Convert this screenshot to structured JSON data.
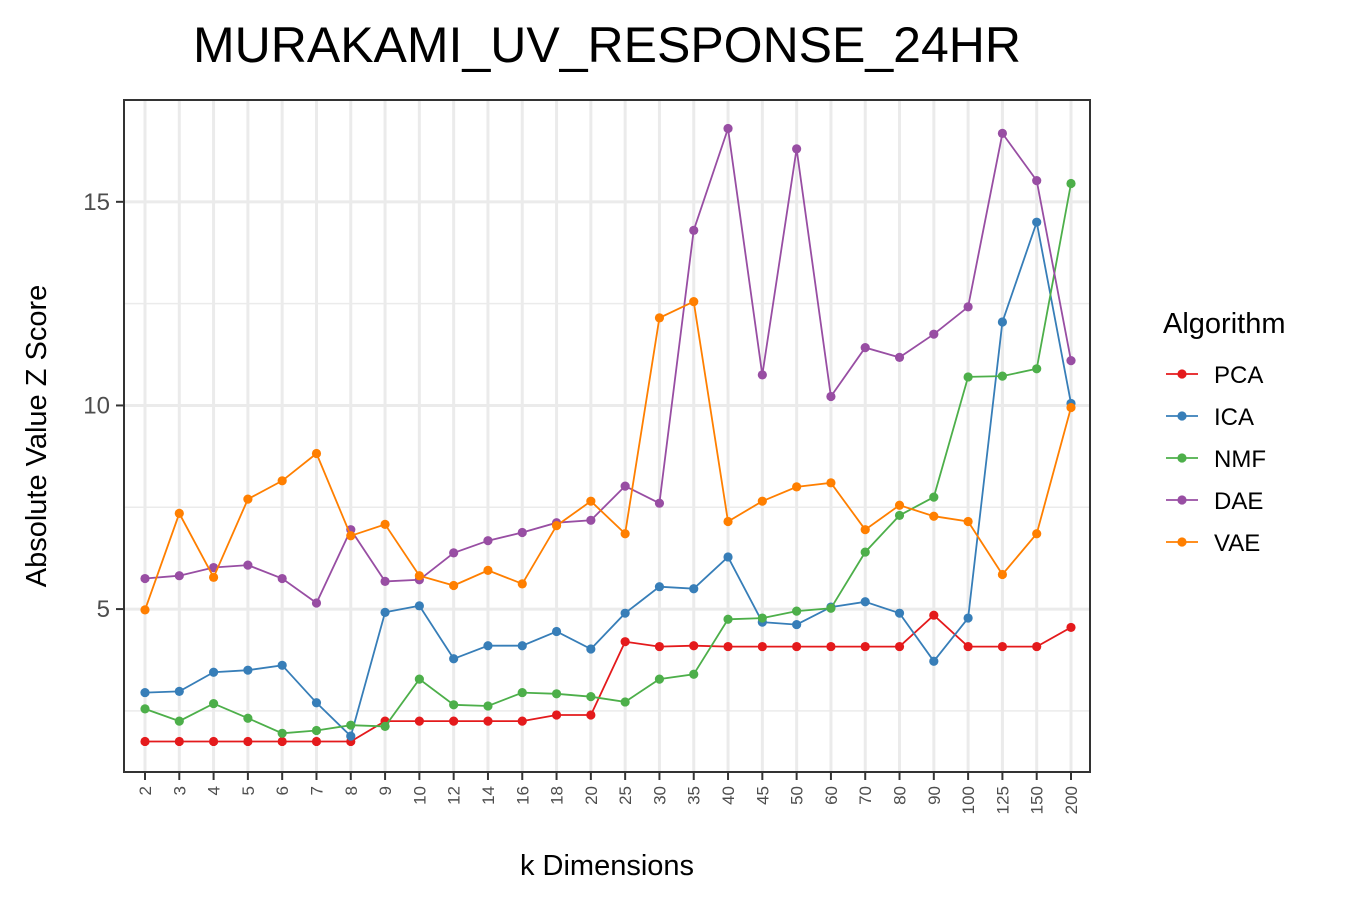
{
  "chart_data": {
    "type": "line",
    "title": "MURAKAMI_UV_RESPONSE_24HR",
    "xlabel": "k Dimensions",
    "ylabel": "Absolute Value Z Score",
    "categories": [
      "2",
      "3",
      "4",
      "5",
      "6",
      "7",
      "8",
      "9",
      "10",
      "12",
      "14",
      "16",
      "18",
      "20",
      "25",
      "30",
      "35",
      "40",
      "45",
      "50",
      "60",
      "70",
      "80",
      "90",
      "100",
      "125",
      "150",
      "200"
    ],
    "ylim": [
      1.0,
      17.5
    ],
    "yticks": [
      5,
      10,
      15
    ],
    "grid": true,
    "legend": {
      "title": "Algorithm",
      "position": "right"
    },
    "series": [
      {
        "name": "PCA",
        "color": "#e41a1c",
        "values": [
          1.75,
          1.75,
          1.75,
          1.75,
          1.75,
          1.75,
          1.75,
          2.25,
          2.25,
          2.25,
          2.25,
          2.25,
          2.4,
          2.4,
          4.2,
          4.08,
          4.1,
          4.08,
          4.08,
          4.08,
          4.08,
          4.08,
          4.08,
          4.85,
          4.08,
          4.08,
          4.08,
          4.55
        ]
      },
      {
        "name": "ICA",
        "color": "#377eb8",
        "values": [
          2.95,
          2.98,
          3.45,
          3.5,
          3.62,
          2.7,
          1.88,
          4.92,
          5.08,
          3.78,
          4.1,
          4.1,
          4.45,
          4.02,
          4.9,
          5.55,
          5.5,
          6.28,
          4.68,
          4.62,
          5.05,
          5.18,
          4.9,
          3.72,
          4.78,
          12.05,
          14.5,
          10.05
        ]
      },
      {
        "name": "NMF",
        "color": "#4daf4a",
        "values": [
          2.55,
          2.25,
          2.68,
          2.32,
          1.95,
          2.02,
          2.15,
          2.12,
          3.28,
          2.65,
          2.62,
          2.95,
          2.92,
          2.85,
          2.72,
          3.28,
          3.4,
          4.75,
          4.78,
          4.95,
          5.02,
          6.4,
          7.3,
          7.75,
          10.7,
          10.72,
          10.9,
          15.45
        ]
      },
      {
        "name": "DAE",
        "color": "#984ea3",
        "values": [
          5.75,
          5.82,
          6.02,
          6.08,
          5.75,
          5.15,
          6.95,
          5.68,
          5.72,
          6.38,
          6.68,
          6.88,
          7.12,
          7.18,
          8.02,
          7.6,
          14.3,
          16.8,
          10.75,
          16.3,
          10.22,
          11.42,
          11.18,
          11.75,
          12.42,
          16.68,
          15.52,
          11.1
        ]
      },
      {
        "name": "VAE",
        "color": "#ff7f00",
        "values": [
          4.98,
          7.35,
          5.78,
          7.7,
          8.15,
          8.82,
          6.8,
          7.08,
          5.82,
          5.58,
          5.95,
          5.62,
          7.05,
          7.65,
          6.85,
          12.15,
          12.55,
          7.15,
          7.65,
          8.0,
          8.1,
          6.95,
          7.55,
          7.28,
          7.15,
          5.85,
          6.85,
          9.95
        ]
      }
    ]
  }
}
